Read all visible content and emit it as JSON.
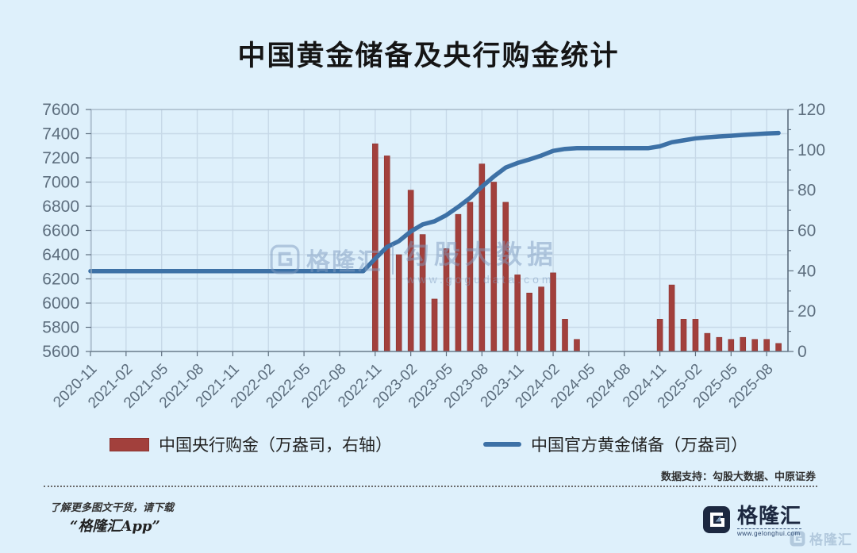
{
  "title": "中国黄金储备及央行购金统计",
  "legend": {
    "bar_label": "中国央行购金（万盎司，右轴）",
    "line_label": "中国官方黄金储备（万盎司）"
  },
  "watermark": {
    "brand": "格隆汇",
    "product": "勾股大数据",
    "url": "www.gogudata.com"
  },
  "footer": {
    "data_support": "数据支持：勾股大数据、中原证券",
    "promo_line1": "了解更多图文干货，请下载",
    "promo_line2": "“格隆汇App”",
    "logo_text": "格隆汇",
    "logo_url": "www.gelonghui.com",
    "corner_watermark_text": "格隆汇"
  },
  "colors": {
    "background": "#def0fb",
    "bar": "#a2403c",
    "bar_edge": "#8c3430",
    "line": "#3d71a6",
    "grid": "#c7d9e8",
    "border": "#a3b4c4",
    "spine": "#5f7080",
    "tick_text": "#5d6e7e",
    "watermark": "#7f9cc0",
    "logo_navy": "#1c2840"
  },
  "chart_data": {
    "type": "combo (bar + line)",
    "title": "中国黄金储备及央行购金统计",
    "xlabel": "",
    "ylabel_left": "中国官方黄金储备（万盎司）",
    "ylabel_right": "中国央行购金（万盎司）",
    "grid": true,
    "legend_position": "bottom",
    "x_tick_every": 3,
    "x_tick_labels": [
      "2020-11",
      "2021-02",
      "2021-05",
      "2021-08",
      "2021-11",
      "2022-02",
      "2022-05",
      "2022-08",
      "2022-11",
      "2023-02",
      "2023-05",
      "2023-08",
      "2023-11",
      "2024-02",
      "2024-05",
      "2024-08",
      "2024-11",
      "2025-02",
      "2025-05",
      "2025-08"
    ],
    "months": [
      "2020-11",
      "2020-12",
      "2021-01",
      "2021-02",
      "2021-03",
      "2021-04",
      "2021-05",
      "2021-06",
      "2021-07",
      "2021-08",
      "2021-09",
      "2021-10",
      "2021-11",
      "2021-12",
      "2022-01",
      "2022-02",
      "2022-03",
      "2022-04",
      "2022-05",
      "2022-06",
      "2022-07",
      "2022-08",
      "2022-09",
      "2022-10",
      "2022-11",
      "2022-12",
      "2023-01",
      "2023-02",
      "2023-03",
      "2023-04",
      "2023-05",
      "2023-06",
      "2023-07",
      "2023-08",
      "2023-09",
      "2023-10",
      "2023-11",
      "2023-12",
      "2024-01",
      "2024-02",
      "2024-03",
      "2024-04",
      "2024-05",
      "2024-06",
      "2024-07",
      "2024-08",
      "2024-09",
      "2024-10",
      "2024-11",
      "2024-12",
      "2025-01",
      "2025-02",
      "2025-03",
      "2025-04",
      "2025-05",
      "2025-06",
      "2025-07",
      "2025-08",
      "2025-09"
    ],
    "left_axis": {
      "min": 5600,
      "max": 7600,
      "step": 200,
      "ticks": [
        7600,
        7400,
        7200,
        7000,
        6800,
        6600,
        6400,
        6200,
        6000,
        5800,
        5600
      ]
    },
    "right_axis": {
      "min": 0,
      "max": 120,
      "step": 20,
      "minor_step": 10,
      "ticks": [
        120,
        100,
        80,
        60,
        40,
        20,
        0
      ]
    },
    "series": [
      {
        "name": "中国央行购金（万盎司，右轴）",
        "kind": "bar",
        "axis": "right",
        "color": "#a2403c",
        "values": [
          0,
          0,
          0,
          0,
          0,
          0,
          0,
          0,
          0,
          0,
          0,
          0,
          0,
          0,
          0,
          0,
          0,
          0,
          0,
          0,
          0,
          0,
          0,
          0,
          103,
          97,
          48,
          80,
          58,
          26,
          51,
          68,
          74,
          93,
          84,
          74,
          38,
          29,
          32,
          39,
          16,
          6,
          0,
          0,
          0,
          0,
          0,
          0,
          16,
          33,
          16,
          16,
          9,
          7,
          6,
          7,
          6,
          6,
          4
        ]
      },
      {
        "name": "中国官方黄金储备（万盎司）",
        "kind": "line",
        "axis": "left",
        "color": "#3d71a6",
        "values": [
          6264,
          6264,
          6264,
          6264,
          6264,
          6264,
          6264,
          6264,
          6264,
          6264,
          6264,
          6264,
          6264,
          6264,
          6264,
          6264,
          6264,
          6264,
          6264,
          6264,
          6264,
          6264,
          6264,
          6264,
          6367,
          6464,
          6512,
          6592,
          6650,
          6676,
          6727,
          6795,
          6869,
          6962,
          7046,
          7120,
          7158,
          7187,
          7219,
          7258,
          7274,
          7280,
          7280,
          7280,
          7280,
          7280,
          7280,
          7280,
          7296,
          7329,
          7345,
          7361,
          7370,
          7377,
          7383,
          7390,
          7396,
          7402,
          7406
        ]
      }
    ]
  }
}
